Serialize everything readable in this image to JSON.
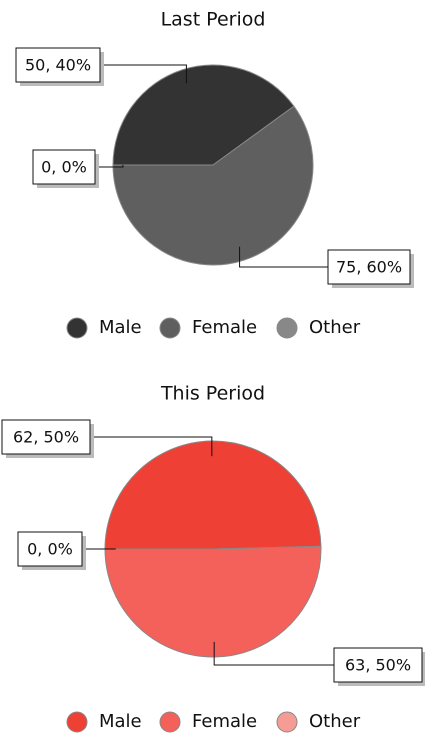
{
  "chart_data": [
    {
      "type": "pie",
      "title": "Last Period",
      "categories": [
        "Male",
        "Female",
        "Other"
      ],
      "values": [
        50,
        75,
        0
      ],
      "value_labels": [
        "50, 40%",
        "75, 60%",
        "0, 0%"
      ],
      "colors": [
        "#333333",
        "#5f5f5f",
        "#888888"
      ]
    },
    {
      "type": "pie",
      "title": "This Period",
      "categories": [
        "Male",
        "Female",
        "Other"
      ],
      "values": [
        62,
        63,
        0
      ],
      "value_labels": [
        "62, 50%",
        "63, 50%",
        "0, 0%"
      ],
      "colors": [
        "#ee4035",
        "#f4615a",
        "#f59c94"
      ]
    }
  ]
}
